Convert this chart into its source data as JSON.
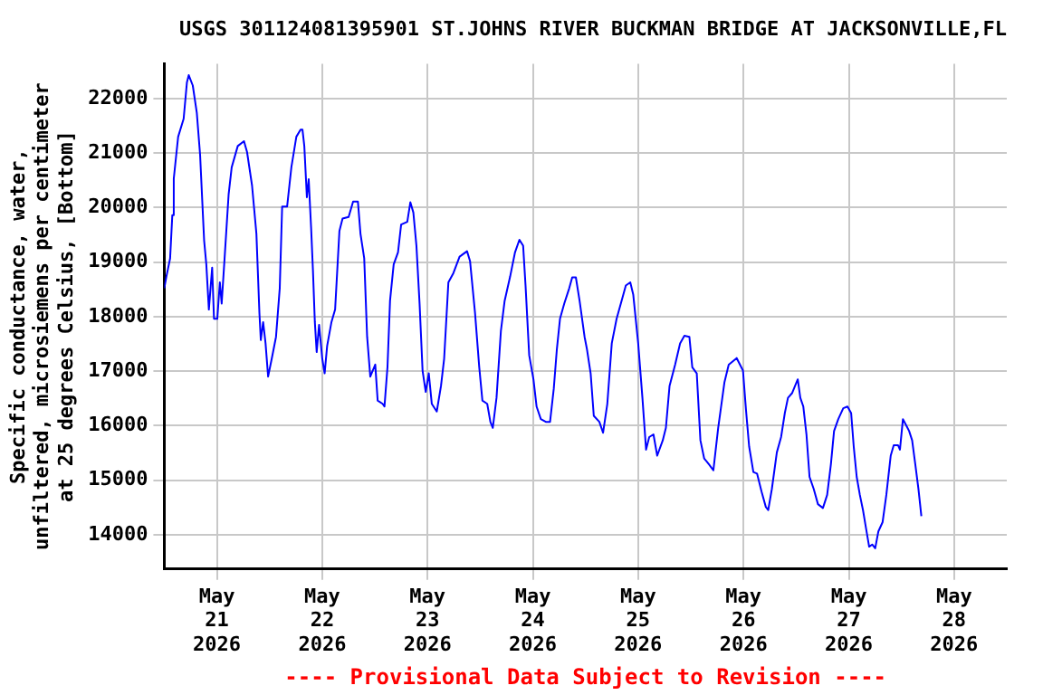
{
  "chart_data": {
    "type": "line",
    "title": "USGS 301124081395901 ST.JOHNS RIVER BUCKMAN BRIDGE AT JACKSONVILLE,FL",
    "ylabel": "Specific conductance, water, unfiltered, microsiemens per centimeter at 25 degrees Celsius, [Bottom]",
    "annotations": [
      "---- Provisional Data Subject to Revision ----"
    ],
    "x": [
      "2026-05-20T12:00",
      "2026-05-20T12:30",
      "2026-05-20T13:20",
      "2026-05-20T13:50",
      "2026-05-20T14:10",
      "2026-05-20T15:10",
      "2026-05-20T16:25",
      "2026-05-20T17:10",
      "2026-05-20T17:35",
      "2026-05-20T18:30",
      "2026-05-20T19:25",
      "2026-05-20T20:10",
      "2026-05-20T21:05",
      "2026-05-20T21:35",
      "2026-05-20T22:10",
      "2026-05-20T22:55",
      "2026-05-20T23:20",
      "2026-05-21T00:05",
      "2026-05-21T00:40",
      "2026-05-21T01:05",
      "2026-05-21T01:50",
      "2026-05-21T02:40",
      "2026-05-21T03:22",
      "2026-05-21T04:45",
      "2026-05-21T06:10",
      "2026-05-21T06:52",
      "2026-05-21T08:00",
      "2026-05-21T09:00",
      "2026-05-21T09:41",
      "2026-05-21T10:00",
      "2026-05-21T10:32",
      "2026-05-21T11:05",
      "2026-05-21T11:40",
      "2026-05-21T12:30",
      "2026-05-21T13:28",
      "2026-05-21T14:19",
      "2026-05-21T14:52",
      "2026-05-21T16:00",
      "2026-05-21T16:58",
      "2026-05-21T18:06",
      "2026-05-21T19:04",
      "2026-05-21T19:30",
      "2026-05-21T19:55",
      "2026-05-21T20:30",
      "2026-05-21T20:55",
      "2026-05-21T21:28",
      "2026-05-21T21:53",
      "2026-05-21T22:19",
      "2026-05-21T22:44",
      "2026-05-21T23:17",
      "2026-05-22T00:00",
      "2026-05-22T00:33",
      "2026-05-22T01:07",
      "2026-05-22T02:06",
      "2026-05-22T02:56",
      "2026-05-22T03:55",
      "2026-05-22T04:38",
      "2026-05-22T06:01",
      "2026-05-22T07:02",
      "2026-05-22T08:08",
      "2026-05-22T08:43",
      "2026-05-22T09:34",
      "2026-05-22T10:14",
      "2026-05-22T10:57",
      "2026-05-22T12:05",
      "2026-05-22T12:38",
      "2026-05-22T13:46",
      "2026-05-22T14:11",
      "2026-05-22T14:52",
      "2026-05-22T15:27",
      "2026-05-22T16:17",
      "2026-05-22T17:16",
      "2026-05-22T17:59",
      "2026-05-22T19:23",
      "2026-05-22T20:05",
      "2026-05-22T20:46",
      "2026-05-22T21:28",
      "2026-05-22T22:11",
      "2026-05-22T22:52",
      "2026-05-22T23:35",
      "2026-05-23T00:17",
      "2026-05-23T00:58",
      "2026-05-23T02:06",
      "2026-05-23T03:04",
      "2026-05-23T03:47",
      "2026-05-23T04:45",
      "2026-05-23T05:54",
      "2026-05-23T07:18",
      "2026-05-23T09:00",
      "2026-05-23T09:41",
      "2026-05-23T10:49",
      "2026-05-23T11:47",
      "2026-05-23T12:30",
      "2026-05-23T13:36",
      "2026-05-23T14:19",
      "2026-05-23T14:52",
      "2026-05-23T15:43",
      "2026-05-23T16:43",
      "2026-05-23T17:34",
      "2026-05-23T18:50",
      "2026-05-23T19:56",
      "2026-05-23T20:56",
      "2026-05-23T21:47",
      "2026-05-23T22:20",
      "2026-05-23T23:10",
      "2026-05-24T00:08",
      "2026-05-24T00:51",
      "2026-05-24T01:49",
      "2026-05-24T02:57",
      "2026-05-24T03:55",
      "2026-05-24T04:46",
      "2026-05-24T05:28",
      "2026-05-24T06:11",
      "2026-05-24T07:09",
      "2026-05-24T08:17",
      "2026-05-24T08:58",
      "2026-05-24T09:48",
      "2026-05-24T10:39",
      "2026-05-24T11:47",
      "2026-05-24T12:20",
      "2026-05-24T13:10",
      "2026-05-24T13:53",
      "2026-05-24T15:09",
      "2026-05-24T16:00",
      "2026-05-24T16:58",
      "2026-05-24T17:59",
      "2026-05-24T19:05",
      "2026-05-24T20:13",
      "2026-05-24T21:11",
      "2026-05-24T22:12",
      "2026-05-24T22:53",
      "2026-05-25T00:00",
      "2026-05-25T00:58",
      "2026-05-25T01:48",
      "2026-05-25T02:31",
      "2026-05-25T03:29",
      "2026-05-25T04:20",
      "2026-05-25T05:36",
      "2026-05-25T06:19",
      "2026-05-25T07:09",
      "2026-05-25T08:25",
      "2026-05-25T09:33",
      "2026-05-25T10:32",
      "2026-05-25T11:40",
      "2026-05-25T12:20",
      "2026-05-25T13:21",
      "2026-05-25T14:11",
      "2026-05-25T15:02",
      "2026-05-25T16:08",
      "2026-05-25T17:08",
      "2026-05-25T18:14",
      "2026-05-25T19:40",
      "2026-05-25T20:38",
      "2026-05-25T22:27",
      "2026-05-25T23:53",
      "2026-05-26T00:34",
      "2026-05-26T01:17",
      "2026-05-26T02:15",
      "2026-05-26T03:06",
      "2026-05-26T04:07",
      "2026-05-26T05:05",
      "2026-05-26T05:38",
      "2026-05-26T06:28",
      "2026-05-26T07:36",
      "2026-05-26T08:34",
      "2026-05-26T09:25",
      "2026-05-26T10:08",
      "2026-05-26T11:06",
      "2026-05-26T12:22",
      "2026-05-26T12:57",
      "2026-05-26T13:38",
      "2026-05-26T14:21",
      "2026-05-26T15:03",
      "2026-05-26T16:00",
      "2026-05-26T16:58",
      "2026-05-26T18:06",
      "2026-05-26T19:04",
      "2026-05-26T19:55",
      "2026-05-26T20:38",
      "2026-05-26T21:36",
      "2026-05-26T22:44",
      "2026-05-26T23:42",
      "2026-05-27T00:32",
      "2026-05-27T01:07",
      "2026-05-27T01:48",
      "2026-05-27T02:31",
      "2026-05-27T03:14",
      "2026-05-27T03:55",
      "2026-05-27T04:38",
      "2026-05-27T05:20",
      "2026-05-27T06:01",
      "2026-05-27T06:44",
      "2026-05-27T07:42",
      "2026-05-27T08:33",
      "2026-05-27T09:33",
      "2026-05-27T10:14",
      "2026-05-27T11:14",
      "2026-05-27T11:39",
      "2026-05-27T12:20",
      "2026-05-27T13:03",
      "2026-05-27T13:45",
      "2026-05-27T14:26",
      "2026-05-27T15:09",
      "2026-05-27T15:52",
      "2026-05-27T16:32"
    ],
    "series": [
      {
        "color": "#0000ff",
        "values": [
          18520,
          18740,
          19070,
          19860,
          20530,
          21300,
          21630,
          22300,
          22430,
          22240,
          21740,
          20970,
          19400,
          18960,
          18130,
          18900,
          17960,
          17960,
          18630,
          18240,
          19180,
          20240,
          20740,
          21130,
          21220,
          21020,
          20410,
          19520,
          18070,
          17570,
          17900,
          17510,
          16900,
          17230,
          17630,
          18520,
          20020,
          20020,
          20740,
          21300,
          21430,
          21430,
          21130,
          20190,
          20520,
          19630,
          18850,
          17900,
          17350,
          17850,
          17230,
          16960,
          17460,
          17900,
          18130,
          19570,
          19800,
          19830,
          20110,
          20110,
          19520,
          19070,
          17630,
          16900,
          17120,
          16460,
          16400,
          16350,
          17070,
          18290,
          18960,
          19180,
          19690,
          19740,
          20100,
          19910,
          19300,
          18240,
          17010,
          16620,
          16960,
          16400,
          16260,
          16730,
          17230,
          18630,
          18800,
          19100,
          19200,
          19020,
          18070,
          17070,
          16460,
          16400,
          16070,
          15960,
          16510,
          17740,
          18290,
          18740,
          19180,
          19410,
          19300,
          18570,
          17290,
          16850,
          16350,
          16120,
          16070,
          16070,
          16680,
          17400,
          17960,
          18240,
          18520,
          18720,
          18720,
          18290,
          17630,
          17400,
          16960,
          16180,
          16070,
          15870,
          16400,
          17510,
          17960,
          18290,
          18570,
          18630,
          18400,
          17510,
          16510,
          15560,
          15790,
          15840,
          15450,
          15730,
          15960,
          16730,
          17120,
          17510,
          17650,
          17630,
          17070,
          16960,
          15730,
          15400,
          15290,
          15180,
          15960,
          16800,
          17120,
          17240,
          17010,
          16290,
          15620,
          15150,
          15120,
          14790,
          14510,
          14450,
          14840,
          15510,
          15790,
          16230,
          16510,
          16600,
          16850,
          16510,
          16350,
          15840,
          15060,
          14840,
          14560,
          14490,
          14730,
          15290,
          15900,
          16120,
          16320,
          16350,
          16230,
          15620,
          15060,
          14730,
          14450,
          14120,
          13780,
          13820,
          13750,
          14060,
          14230,
          14730,
          15450,
          15640,
          15640,
          15560,
          16120,
          16010,
          15900,
          15730,
          15290,
          14840,
          14340
        ]
      }
    ],
    "xlim": [
      "2026-05-20T12:00",
      "2026-05-28T12:00"
    ],
    "xticks": [
      {
        "value": "2026-05-21",
        "label": "May 21 2026"
      },
      {
        "value": "2026-05-22",
        "label": "May 22 2026"
      },
      {
        "value": "2026-05-23",
        "label": "May 23 2026"
      },
      {
        "value": "2026-05-24",
        "label": "May 24 2026"
      },
      {
        "value": "2026-05-25",
        "label": "May 25 2026"
      },
      {
        "value": "2026-05-26",
        "label": "May 26 2026"
      },
      {
        "value": "2026-05-27",
        "label": "May 27 2026"
      },
      {
        "value": "2026-05-28",
        "label": "May 28 2026"
      }
    ],
    "ylim": [
      13370,
      22640
    ],
    "yticks": [
      14000,
      15000,
      16000,
      17000,
      18000,
      19000,
      20000,
      21000,
      22000
    ],
    "grid": true
  }
}
